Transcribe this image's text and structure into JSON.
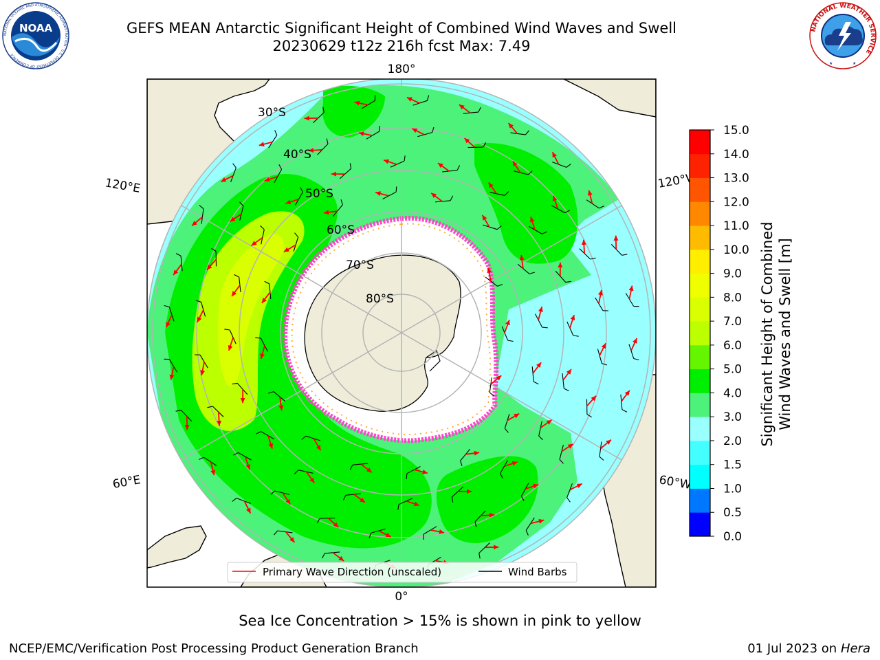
{
  "header": {
    "title_line1": "GEFS MEAN Antarctic Significant Height of Combined Wind Waves and Swell",
    "title_line2": "20230629 t12z 216h fcst   Max: 7.49"
  },
  "logos": {
    "noaa": {
      "text": "NOAA",
      "ring_text": "NATIONAL OCEANIC AND ATMOSPHERIC ADMINISTRATION · U.S. DEPARTMENT OF COMMERCE"
    },
    "nws": {
      "ring_text": "NATIONAL WEATHER SERVICE"
    }
  },
  "map": {
    "projection": "south polar stereographic",
    "longitude_labels": [
      "180°",
      "120°E",
      "120°W",
      "60°E",
      "60°W",
      "0°"
    ],
    "latitude_labels": [
      "30°S",
      "40°S",
      "50°S",
      "60°S",
      "70°S",
      "80°S"
    ],
    "colors": {
      "land": "#efedda",
      "ice": "#ffffff",
      "ice_edge": "#ff44cc",
      "ice_edge_inner": "#ffaa33",
      "grid": "#b4b4b4",
      "wave_arrow": "#ff0000",
      "wind_barb": "#000000"
    }
  },
  "legend": {
    "items": [
      {
        "label": "Primary Wave Direction (unscaled)",
        "color": "#ff0000"
      },
      {
        "label": "Wind Barbs",
        "color": "#000000"
      }
    ]
  },
  "colorbar": {
    "label": "Significant Height of Combined\nWind Waves and Swell [m]",
    "ticks": [
      "0.0",
      "0.5",
      "1.0",
      "1.5",
      "2.0",
      "3.0",
      "4.0",
      "5.0",
      "6.0",
      "7.0",
      "8.0",
      "9.0",
      "10.0",
      "11.0",
      "12.0",
      "13.0",
      "14.0",
      "15.0"
    ],
    "colors": [
      "#0000ff",
      "#0077ff",
      "#00ffff",
      "#44ffff",
      "#99ffff",
      "#4cf27a",
      "#00ef00",
      "#66f500",
      "#bbff00",
      "#d9ff00",
      "#f0ff00",
      "#ffee00",
      "#ffbb00",
      "#ff8800",
      "#ff5500",
      "#ff2200",
      "#ff0000"
    ]
  },
  "caption": "Sea Ice Concentration > 15% is shown in pink to yellow",
  "footer": {
    "left": "NCEP/EMC/Verification Post Processing Product Generation Branch",
    "right_date": "01 Jul 2023 on ",
    "right_system": "Hera"
  }
}
